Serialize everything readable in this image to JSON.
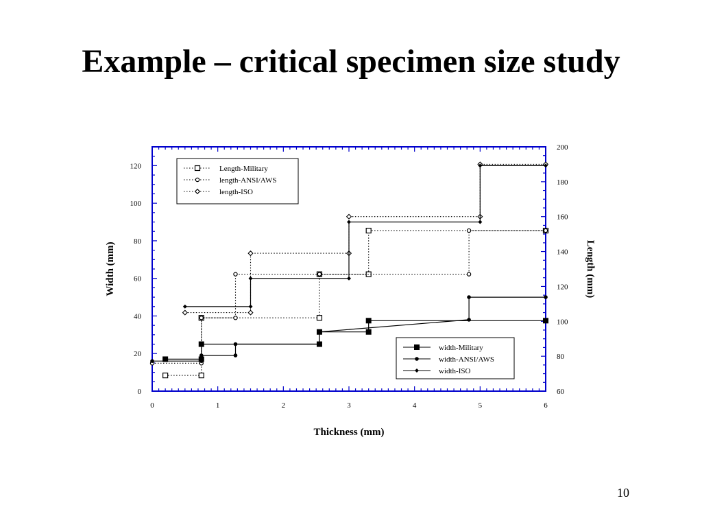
{
  "slide": {
    "title": "Example – critical specimen size study",
    "page_number": "10"
  },
  "chart_data": {
    "type": "line",
    "xlabel": "Thickness (mm)",
    "ylabel_left": "Width (mm)",
    "ylabel_right": "Length (mm)",
    "xlim": [
      0,
      6
    ],
    "ylim_left": [
      0,
      130
    ],
    "ylim_right": [
      60,
      200
    ],
    "x_ticks": [
      "0",
      "1",
      "2",
      "3",
      "4",
      "5",
      "6"
    ],
    "y_left_ticks": [
      "0",
      "20",
      "40",
      "60",
      "80",
      "100",
      "120"
    ],
    "y_right_ticks": [
      "60",
      "80",
      "100",
      "120",
      "140",
      "160",
      "180",
      "200"
    ],
    "frame_color": "#0000cc",
    "line_color": "#000000",
    "grid": false,
    "legend_length_placement": "top-left",
    "legend_width_placement": "bottom-right",
    "series": [
      {
        "name": "Length-Military",
        "axis": "right",
        "style": "dotted",
        "marker": "open-square",
        "x": [
          0.2,
          0.75,
          0.75,
          2.55,
          2.55,
          3.3,
          3.3,
          6.0
        ],
        "y": [
          69,
          69,
          102,
          102,
          127,
          127,
          152,
          152
        ]
      },
      {
        "name": "length-ANSI/AWS",
        "axis": "right",
        "style": "dotted",
        "marker": "open-circle",
        "x": [
          0,
          0.75,
          0.75,
          1.27,
          1.27,
          2.55,
          2.55,
          4.83,
          4.83,
          6.0
        ],
        "y": [
          76,
          76,
          102,
          102,
          127,
          127,
          127,
          127,
          152,
          152
        ]
      },
      {
        "name": "length-ISO",
        "axis": "right",
        "style": "dotted",
        "marker": "open-diamond",
        "x": [
          0.5,
          1.5,
          1.5,
          3.0,
          3.0,
          5.0,
          5.0,
          6.0
        ],
        "y": [
          105,
          105,
          139,
          139,
          160,
          160,
          190,
          190
        ]
      },
      {
        "name": "width-Military",
        "axis": "left",
        "style": "solid",
        "marker": "filled-square",
        "x": [
          0.2,
          0.75,
          0.75,
          2.55,
          2.55,
          3.3,
          3.3,
          6.0
        ],
        "y": [
          17,
          17,
          25,
          25,
          31.5,
          31.5,
          37.5,
          37.5
        ]
      },
      {
        "name": "width-ANSI/AWS",
        "axis": "left",
        "style": "solid",
        "marker": "filled-circle",
        "x": [
          0,
          0.75,
          0.75,
          1.27,
          1.27,
          2.55,
          2.55,
          4.83,
          4.83,
          6.0
        ],
        "y": [
          16,
          16,
          19,
          19,
          25,
          25,
          31.5,
          38,
          50,
          50
        ]
      },
      {
        "name": "width-ISO",
        "axis": "left",
        "style": "solid",
        "marker": "filled-diamond",
        "x": [
          0.5,
          1.5,
          1.5,
          3.0,
          3.0,
          5.0,
          5.0,
          6.0
        ],
        "y": [
          45,
          45,
          60,
          60,
          90,
          90,
          120,
          120
        ]
      }
    ]
  }
}
